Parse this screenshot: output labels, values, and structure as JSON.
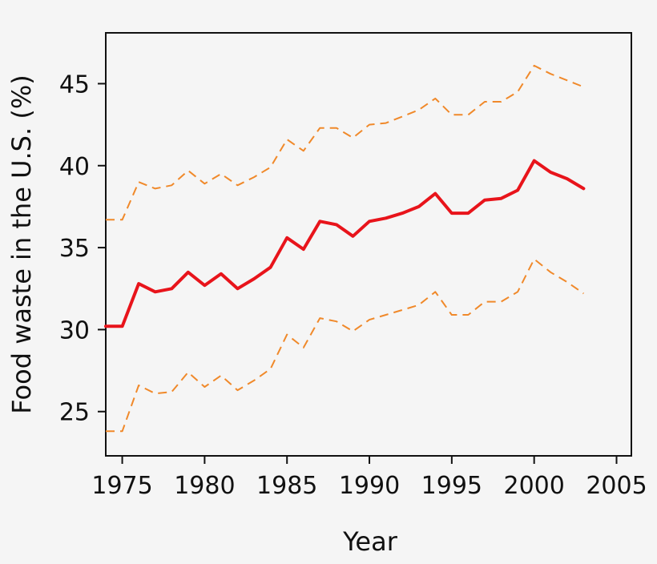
{
  "chart_data": {
    "type": "line",
    "title": "",
    "xlabel": "Year",
    "ylabel": "Food waste in the U.S. (%)",
    "xlim": [
      1974,
      2005.9
    ],
    "ylim": [
      22.3,
      48.1
    ],
    "xticks": [
      1975,
      1980,
      1985,
      1990,
      1995,
      2000,
      2005
    ],
    "yticks": [
      25,
      30,
      35,
      40,
      45
    ],
    "grid": false,
    "legend": "none",
    "x": [
      1974,
      1975,
      1976,
      1977,
      1978,
      1979,
      1980,
      1981,
      1982,
      1983,
      1984,
      1985,
      1986,
      1987,
      1988,
      1989,
      1990,
      1991,
      1992,
      1993,
      1994,
      1995,
      1996,
      1997,
      1998,
      1999,
      2000,
      2001,
      2002,
      2003
    ],
    "series": [
      {
        "style": "solid",
        "color": "#e8141b",
        "values": [
          30.2,
          30.2,
          32.8,
          32.3,
          32.5,
          33.5,
          32.7,
          33.4,
          32.5,
          33.1,
          33.8,
          35.6,
          34.9,
          36.6,
          36.4,
          35.7,
          36.6,
          36.8,
          37.1,
          37.5,
          38.3,
          37.1,
          37.1,
          37.9,
          38.0,
          38.5,
          40.3,
          39.6,
          39.2,
          38.6
        ]
      },
      {
        "style": "dashed",
        "color": "#f0892a",
        "values": [
          36.7,
          36.7,
          39.0,
          38.6,
          38.8,
          39.7,
          38.9,
          39.5,
          38.8,
          39.3,
          39.9,
          41.6,
          40.9,
          42.3,
          42.3,
          41.7,
          42.5,
          42.6,
          43.0,
          43.4,
          44.1,
          43.1,
          43.1,
          43.9,
          43.9,
          44.5,
          46.1,
          45.6,
          45.2,
          44.8
        ]
      },
      {
        "style": "dashed",
        "color": "#f0892a",
        "values": [
          23.8,
          23.8,
          26.6,
          26.1,
          26.2,
          27.4,
          26.5,
          27.2,
          26.3,
          26.9,
          27.6,
          29.7,
          28.9,
          30.7,
          30.5,
          29.9,
          30.6,
          30.9,
          31.2,
          31.5,
          32.3,
          30.9,
          30.9,
          31.7,
          31.7,
          32.3,
          34.3,
          33.5,
          32.9,
          32.2
        ]
      }
    ]
  }
}
